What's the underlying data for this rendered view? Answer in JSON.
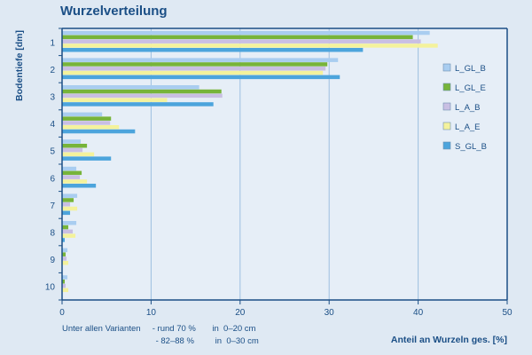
{
  "chart_data": {
    "type": "bar",
    "orientation": "horizontal",
    "title": "Wurzelverteilung",
    "xlabel": "Anteil an Wurzeln ges. [%]",
    "ylabel": "Bodentiefe [dm]",
    "xlim": [
      0,
      50
    ],
    "xticks": [
      0,
      10,
      20,
      30,
      40,
      50
    ],
    "grid": "vertical",
    "legend_position": "right",
    "categories": [
      "1",
      "2",
      "3",
      "4",
      "5",
      "6",
      "7",
      "8",
      "9",
      "10"
    ],
    "series": [
      {
        "name": "L_GL_B",
        "color": "#a9cdf0",
        "values": [
          41.3,
          31.0,
          15.4,
          4.5,
          2.1,
          1.6,
          1.7,
          1.6,
          0.6,
          0.6
        ]
      },
      {
        "name": "L_GL_E",
        "color": "#77b43a",
        "values": [
          39.4,
          29.8,
          17.9,
          5.5,
          2.8,
          2.2,
          1.3,
          0.7,
          0.4,
          0.3
        ]
      },
      {
        "name": "L_A_B",
        "color": "#c9bfe3",
        "values": [
          40.3,
          29.6,
          18.0,
          5.4,
          2.3,
          2.0,
          0.9,
          1.2,
          0.5,
          0.4
        ]
      },
      {
        "name": "L_A_E",
        "color": "#f4f29c",
        "values": [
          42.2,
          29.3,
          11.8,
          6.4,
          3.6,
          2.8,
          1.7,
          1.5,
          0.7,
          0.7
        ]
      },
      {
        "name": "S_GL_B",
        "color": "#4ca4dc",
        "values": [
          33.8,
          31.2,
          17.0,
          8.2,
          5.5,
          3.8,
          0.9,
          0.3,
          0.0,
          0.0
        ]
      }
    ]
  },
  "note": {
    "line1_prefix": "Unter allen Varianten",
    "line1_range": "- rund 70 %",
    "line1_depth": "in  0–20 cm",
    "line2_range": "- 82–88 %",
    "line2_depth": "in  0–30 cm"
  }
}
